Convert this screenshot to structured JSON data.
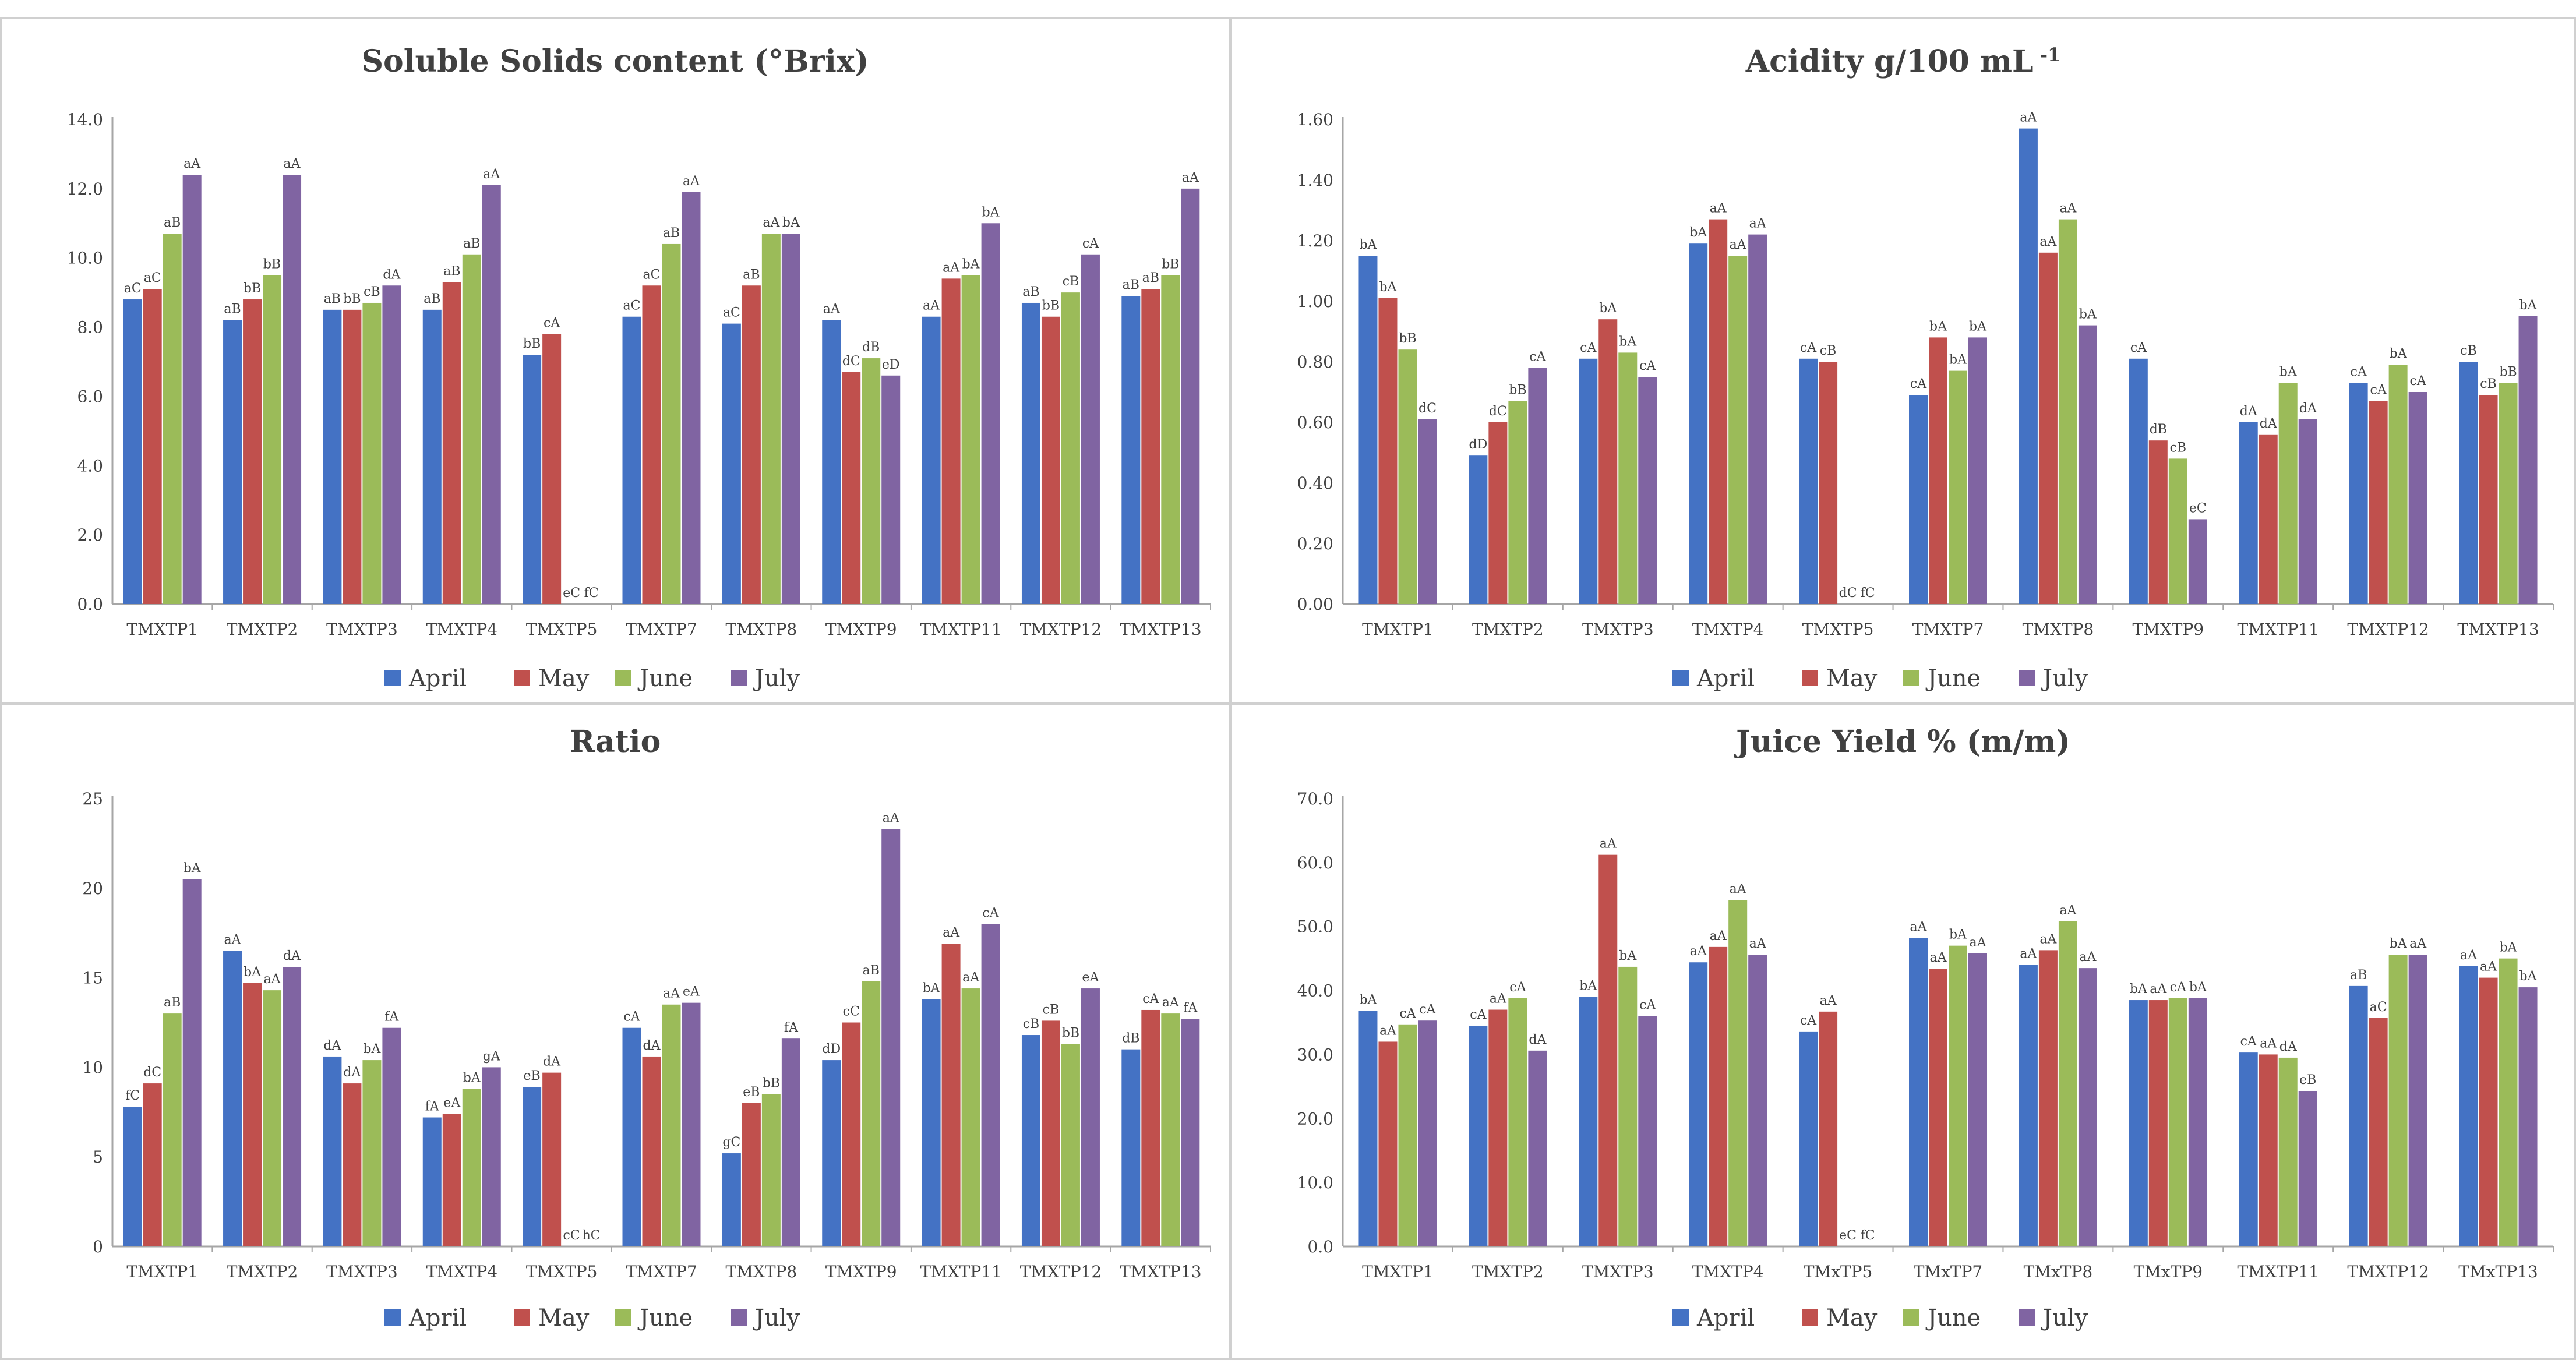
{
  "legend": [
    "April",
    "May",
    "June",
    "July"
  ],
  "colors": {
    "April": "#4472c4",
    "May": "#c0504d",
    "June": "#9bbb59",
    "July": "#8064a2",
    "axis": "#a6a6a6",
    "text": "#404040"
  },
  "chart_data": [
    {
      "type": "bar",
      "title": "Soluble Solids content (°Brix)",
      "categories": [
        "TMXTP1",
        "TMXTP2",
        "TMXTP3",
        "TMXTP4",
        "TMXTP5",
        "TMXTP7",
        "TMXTP8",
        "TMXTP9",
        "TMXTP11",
        "TMXTP12",
        "TMXTP13"
      ],
      "ylim": [
        0,
        14
      ],
      "yticks": [
        "0.0",
        "2.0",
        "4.0",
        "6.0",
        "8.0",
        "10.0",
        "12.0",
        "14.0"
      ],
      "legend_position": "bottom",
      "series": [
        {
          "name": "April",
          "values": [
            8.8,
            8.2,
            8.5,
            8.5,
            7.2,
            8.3,
            8.1,
            8.2,
            8.3,
            8.7,
            8.9
          ],
          "labels": [
            "aC",
            "aB",
            "aB",
            "aB",
            "bB",
            "aC",
            "aC",
            "aA",
            "aA",
            "aB",
            "aB"
          ]
        },
        {
          "name": "May",
          "values": [
            9.1,
            8.8,
            8.5,
            9.3,
            7.8,
            9.2,
            9.2,
            6.7,
            9.4,
            8.3,
            9.1
          ],
          "labels": [
            "aC",
            "bB",
            "bB",
            "aB",
            "cA",
            "aC",
            "aB",
            "dC",
            "aA",
            "bB",
            "aB"
          ]
        },
        {
          "name": "June",
          "values": [
            10.7,
            9.5,
            8.7,
            10.1,
            0,
            10.4,
            10.7,
            7.1,
            9.5,
            9.0,
            9.5
          ],
          "labels": [
            "aB",
            "bB",
            "cB",
            "aB",
            "eC",
            "aB",
            "aA",
            "dB",
            "bA",
            "cB",
            "bB"
          ]
        },
        {
          "name": "July",
          "values": [
            12.4,
            12.4,
            9.2,
            12.1,
            0,
            11.9,
            10.7,
            6.6,
            11.0,
            10.1,
            12.0
          ],
          "labels": [
            "aA",
            "aA",
            "dA",
            "aA",
            "fC",
            "aA",
            "bA",
            "eD",
            "bA",
            "cA",
            "aA"
          ]
        }
      ]
    },
    {
      "type": "bar",
      "title": "Acidity g/100 mL",
      "title_superscript": "-1",
      "categories": [
        "TMXTP1",
        "TMXTP2",
        "TMXTP3",
        "TMXTP4",
        "TMXTP5",
        "TMXTP7",
        "TMXTP8",
        "TMXTP9",
        "TMXTP11",
        "TMXTP12",
        "TMXTP13"
      ],
      "ylim": [
        0,
        1.6
      ],
      "yticks": [
        "0.00",
        "0.20",
        "0.40",
        "0.60",
        "0.80",
        "1.00",
        "1.20",
        "1.40",
        "1.60"
      ],
      "legend_position": "bottom",
      "series": [
        {
          "name": "April",
          "values": [
            1.15,
            0.49,
            0.81,
            1.19,
            0.81,
            0.69,
            1.57,
            0.81,
            0.6,
            0.73,
            0.8
          ],
          "labels": [
            "bA",
            "dD",
            "cA",
            "bA",
            "cA",
            "cA",
            "aA",
            "cA",
            "dA",
            "cA",
            "cB"
          ]
        },
        {
          "name": "May",
          "values": [
            1.01,
            0.6,
            0.94,
            1.27,
            0.8,
            0.88,
            1.16,
            0.54,
            0.56,
            0.67,
            0.69
          ],
          "labels": [
            "bA",
            "dC",
            "bA",
            "aA",
            "cB",
            "bA",
            "aA",
            "dB",
            "dA",
            "cA",
            "cB"
          ]
        },
        {
          "name": "June",
          "values": [
            0.84,
            0.67,
            0.83,
            1.15,
            0,
            0.77,
            1.27,
            0.48,
            0.73,
            0.79,
            0.73
          ],
          "labels": [
            "bB",
            "bB",
            "bA",
            "aA",
            "dC",
            "bA",
            "aA",
            "cB",
            "bA",
            "bA",
            "bB"
          ]
        },
        {
          "name": "July",
          "values": [
            0.61,
            0.78,
            0.75,
            1.22,
            0,
            0.88,
            0.92,
            0.28,
            0.61,
            0.7,
            0.95
          ],
          "labels": [
            "dC",
            "cA",
            "cA",
            "aA",
            "fC",
            "bA",
            "bA",
            "eC",
            "dA",
            "cA",
            "bA"
          ]
        }
      ]
    },
    {
      "type": "bar",
      "title": "Ratio",
      "categories": [
        "TMXTP1",
        "TMXTP2",
        "TMXTP3",
        "TMXTP4",
        "TMXTP5",
        "TMXTP7",
        "TMXTP8",
        "TMXTP9",
        "TMXTP11",
        "TMXTP12",
        "TMXTP13"
      ],
      "ylim": [
        0,
        25
      ],
      "yticks": [
        "0",
        "5",
        "10",
        "15",
        "20",
        "25"
      ],
      "legend_position": "bottom",
      "series": [
        {
          "name": "April",
          "values": [
            7.8,
            16.5,
            10.6,
            7.2,
            8.9,
            12.2,
            5.2,
            10.4,
            13.8,
            11.8,
            11.0
          ],
          "labels": [
            "fC",
            "aA",
            "dA",
            "fA",
            "eB",
            "cA",
            "gC",
            "dD",
            "bA",
            "cB",
            "dB"
          ]
        },
        {
          "name": "May",
          "values": [
            9.1,
            14.7,
            9.1,
            7.4,
            9.7,
            10.6,
            8.0,
            12.5,
            16.9,
            12.6,
            13.2
          ],
          "labels": [
            "dC",
            "bA",
            "dA",
            "eA",
            "dA",
            "dA",
            "eB",
            "cC",
            "aA",
            "cB",
            "cA"
          ]
        },
        {
          "name": "June",
          "values": [
            13.0,
            14.3,
            10.4,
            8.8,
            0,
            13.5,
            8.5,
            14.8,
            14.4,
            11.3,
            13.0
          ],
          "labels": [
            "aB",
            "aA",
            "bA",
            "bA",
            "cC",
            "aA",
            "bB",
            "aB",
            "aA",
            "bB",
            "aA"
          ]
        },
        {
          "name": "July",
          "values": [
            20.5,
            15.6,
            12.2,
            10.0,
            0,
            13.6,
            11.6,
            23.3,
            18.0,
            14.4,
            12.7
          ],
          "labels": [
            "bA",
            "dA",
            "fA",
            "gA",
            "hC",
            "eA",
            "fA",
            "aA",
            "cA",
            "eA",
            "fA"
          ]
        }
      ]
    },
    {
      "type": "bar",
      "title": "Juice Yield % (m/m)",
      "categories": [
        "TMXTP1",
        "TMXTP2",
        "TMXTP3",
        "TMXTP4",
        "TMxTP5",
        "TMxTP7",
        "TMxTP8",
        "TMxTP9",
        "TMXTP11",
        "TMXTP12",
        "TMxTP13"
      ],
      "ylim": [
        0,
        70
      ],
      "yticks": [
        "0.0",
        "10.0",
        "20.0",
        "30.0",
        "40.0",
        "50.0",
        "60.0",
        "70.0"
      ],
      "legend_position": "bottom",
      "series": [
        {
          "name": "April",
          "values": [
            36.8,
            34.5,
            39.0,
            44.4,
            33.6,
            48.2,
            44.0,
            38.5,
            30.3,
            40.7,
            43.8
          ],
          "labels": [
            "bA",
            "cA",
            "bA",
            "aA",
            "cA",
            "aA",
            "aA",
            "bA",
            "cA",
            "aB",
            "aA"
          ]
        },
        {
          "name": "May",
          "values": [
            32.0,
            37.0,
            61.2,
            46.8,
            36.7,
            43.4,
            46.3,
            38.5,
            30.0,
            35.7,
            42.0
          ],
          "labels": [
            "aA",
            "aA",
            "aA",
            "aA",
            "aA",
            "aA",
            "aA",
            "aA",
            "aA",
            "aC",
            "aA"
          ]
        },
        {
          "name": "June",
          "values": [
            34.7,
            38.8,
            43.7,
            54.1,
            0,
            47.0,
            50.8,
            38.8,
            29.5,
            45.6,
            45.0
          ],
          "labels": [
            "cA",
            "cA",
            "bA",
            "aA",
            "eC",
            "bA",
            "aA",
            "cA",
            "dA",
            "bA",
            "bA"
          ]
        },
        {
          "name": "July",
          "values": [
            35.3,
            30.6,
            36.0,
            45.6,
            0,
            45.8,
            43.5,
            38.8,
            24.3,
            45.6,
            40.5
          ],
          "labels": [
            "cA",
            "dA",
            "cA",
            "aA",
            "fC",
            "aA",
            "aA",
            "bA",
            "eB",
            "aA",
            "bA"
          ]
        }
      ]
    }
  ]
}
